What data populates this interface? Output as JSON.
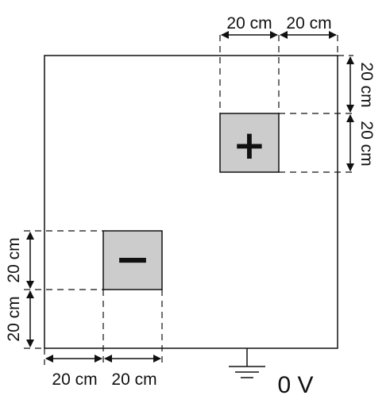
{
  "diagram": {
    "dimension_label": "20 cm",
    "ground_label": "0 V",
    "positive_symbol": "+",
    "negative_symbol": "−",
    "plate_fill": "#cccccc",
    "line_color": "#111111"
  }
}
